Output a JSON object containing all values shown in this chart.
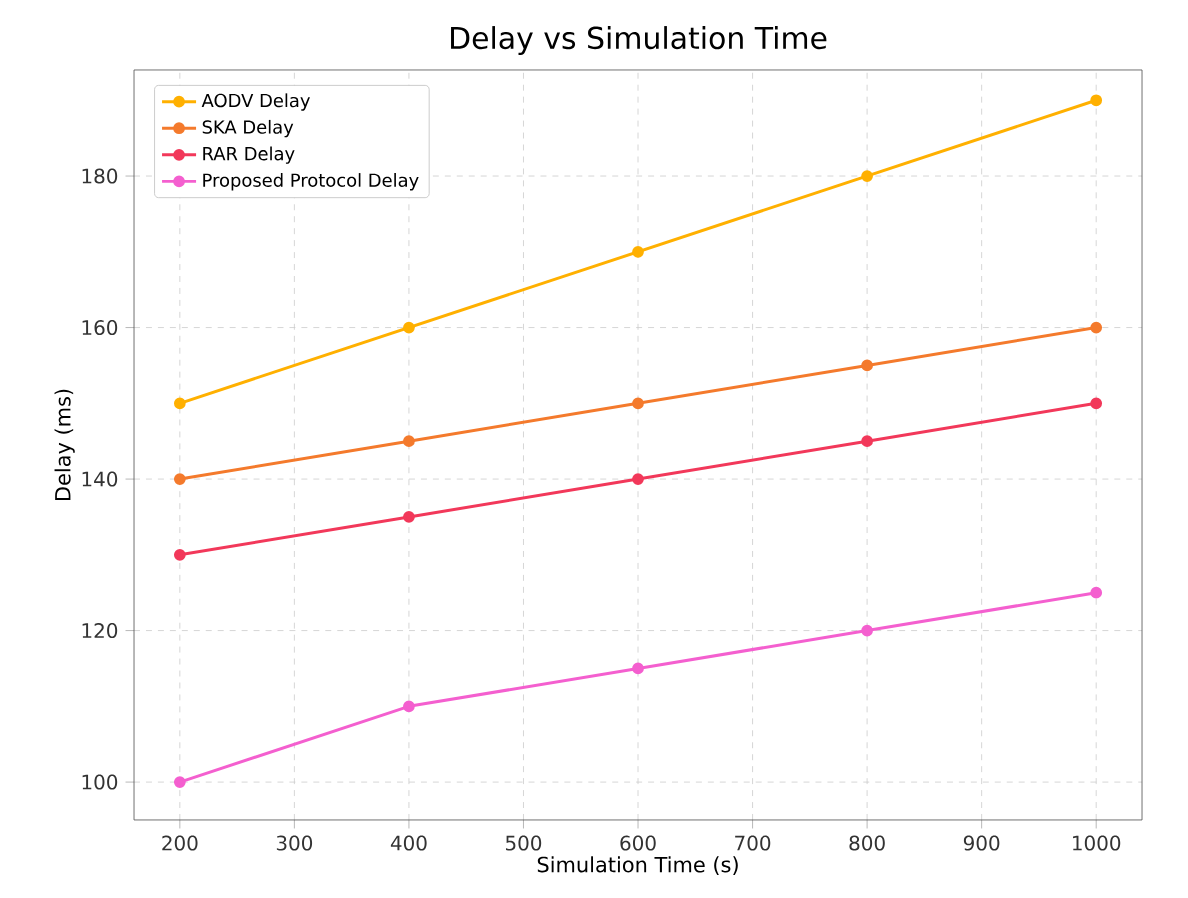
{
  "chart_data": {
    "type": "line",
    "title": "Delay vs Simulation Time",
    "xlabel": "Simulation Time (s)",
    "ylabel": "Delay (ms)",
    "x": [
      200,
      400,
      600,
      800,
      1000
    ],
    "series": [
      {
        "name": "AODV Delay",
        "color": "#ffb000",
        "values": [
          150,
          160,
          170,
          180,
          190
        ]
      },
      {
        "name": "SKA Delay",
        "color": "#f47a2c",
        "values": [
          140,
          145,
          150,
          155,
          160
        ]
      },
      {
        "name": "RAR Delay",
        "color": "#f2385a",
        "values": [
          130,
          135,
          140,
          145,
          150
        ]
      },
      {
        "name": "Proposed Protocol Delay",
        "color": "#f45fcf",
        "values": [
          100,
          110,
          115,
          120,
          125
        ]
      }
    ],
    "xlim": [
      160,
      1040
    ],
    "xticks": [
      200,
      300,
      400,
      500,
      600,
      700,
      800,
      900,
      1000
    ],
    "ylim": [
      95,
      194
    ],
    "yticks": [
      100,
      120,
      140,
      160,
      180
    ],
    "grid": true,
    "legend": "top left",
    "marker": "circle",
    "line_style": "solid"
  }
}
